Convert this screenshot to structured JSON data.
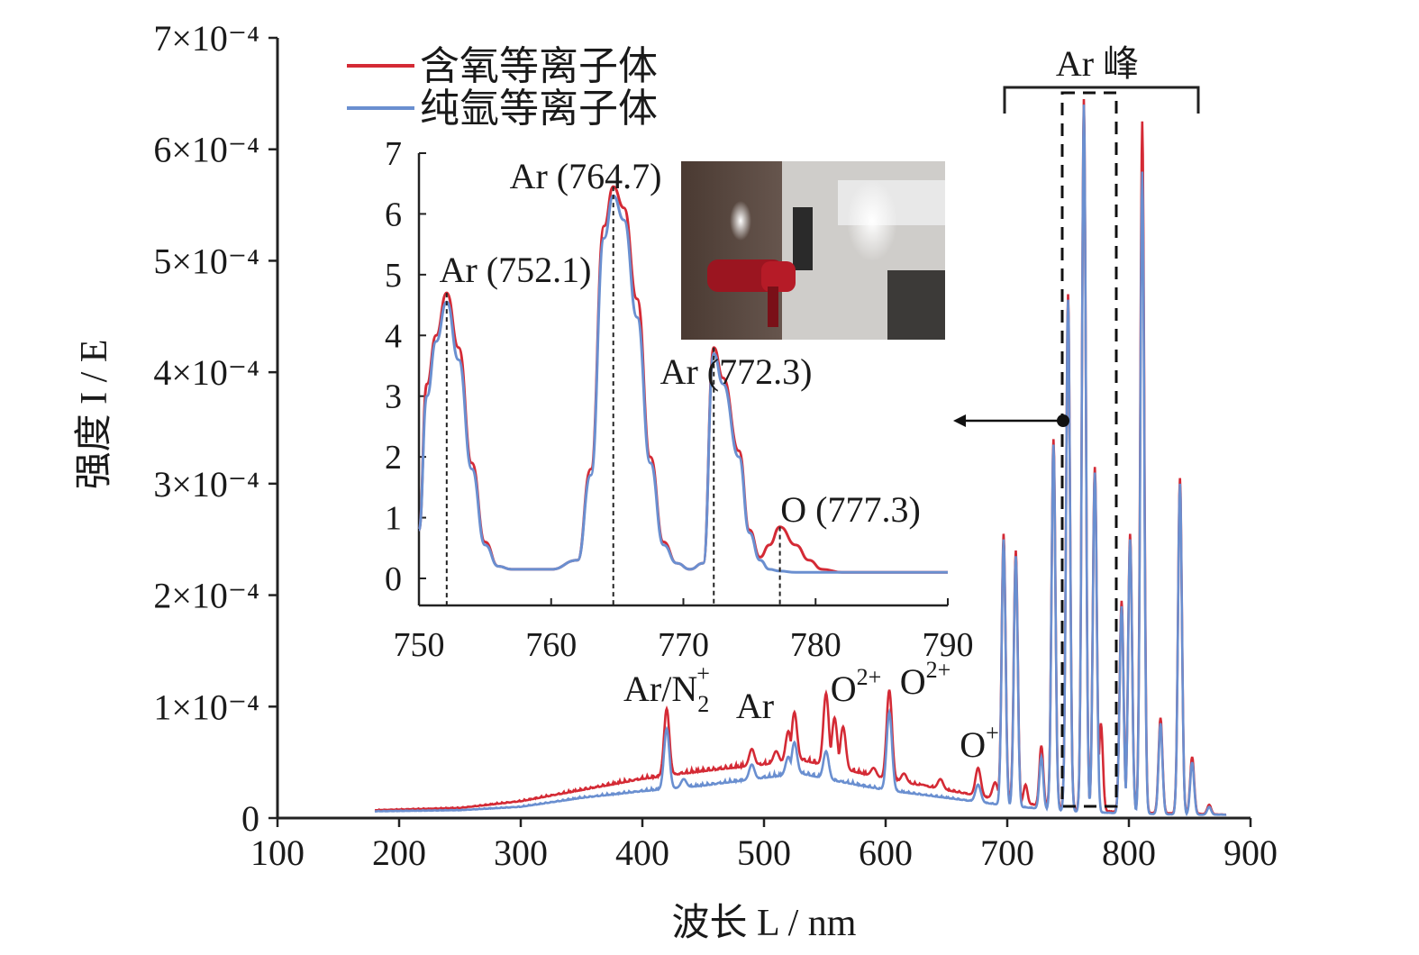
{
  "chart_data": [
    {
      "type": "line",
      "xlabel": "波长 L / nm",
      "ylabel": "强度 I / E",
      "xlim": [
        100,
        900
      ],
      "ylim": [
        0,
        0.0007
      ],
      "xticks": [
        "100",
        "200",
        "300",
        "400",
        "500",
        "600",
        "700",
        "800",
        "900"
      ],
      "yticks": [
        "0",
        "1×10⁻⁴",
        "2×10⁻⁴",
        "3×10⁻⁴",
        "4×10⁻⁴",
        "5×10⁻⁴",
        "6×10⁻⁴",
        "7×10⁻⁴"
      ],
      "legend": {
        "position": "top-left",
        "entries": [
          {
            "name": "含氧等离子体",
            "color": "#d42a35"
          },
          {
            "name": "纯氩等离子体",
            "color": "#6a8fd0"
          }
        ]
      },
      "series": [
        {
          "name": "含氧等离子体",
          "color": "#d42a35",
          "baseline": [
            [
              180,
              7e-06
            ],
            [
              250,
              9e-06
            ],
            [
              300,
              1.5e-05
            ],
            [
              350,
              2.5e-05
            ],
            [
              400,
              3.5e-05
            ],
            [
              450,
              4.2e-05
            ],
            [
              500,
              4.8e-05
            ],
            [
              530,
              5.2e-05
            ],
            [
              560,
              4.5e-05
            ],
            [
              600,
              3.5e-05
            ],
            [
              650,
              2.5e-05
            ],
            [
              700,
              1.5e-05
            ],
            [
              750,
              8e-06
            ],
            [
              800,
              5e-06
            ],
            [
              850,
              4e-06
            ],
            [
              880,
              3e-06
            ]
          ],
          "peaks": [
            [
              356,
              9e-06
            ],
            [
              395,
              1.2e-05
            ],
            [
              405,
              1e-05
            ],
            [
              420,
              9.8e-05
            ],
            [
              434,
              4e-05
            ],
            [
              490,
              6.2e-05
            ],
            [
              510,
              6e-05
            ],
            [
              520,
              7.8e-05
            ],
            [
              525,
              9.5e-05
            ],
            [
              551,
              0.000112
            ],
            [
              558,
              9e-05
            ],
            [
              565,
              8.2e-05
            ],
            [
              590,
              4.5e-05
            ],
            [
              603,
              0.000115
            ],
            [
              615,
              4e-05
            ],
            [
              630,
              3e-05
            ],
            [
              645,
              3.5e-05
            ],
            [
              676,
              4.5e-05
            ],
            [
              690,
              3.2e-05
            ],
            [
              697,
              0.000255
            ],
            [
              707,
              0.00024
            ],
            [
              715,
              3e-05
            ],
            [
              728,
              6.5e-05
            ],
            [
              738,
              0.00034
            ],
            [
              750,
              0.00047
            ],
            [
              763,
              0.000645
            ],
            [
              772,
              0.000315
            ],
            [
              777,
              8.5e-05
            ],
            [
              794,
              0.000195
            ],
            [
              801,
              0.000255
            ],
            [
              811,
              0.000625
            ],
            [
              826,
              9e-05
            ],
            [
              842,
              0.000305
            ],
            [
              852,
              5.5e-05
            ],
            [
              866,
              1.2e-05
            ]
          ]
        },
        {
          "name": "纯氩等离子体",
          "color": "#6a8fd0",
          "baseline": [
            [
              180,
              6e-06
            ],
            [
              250,
              7e-06
            ],
            [
              300,
              1e-05
            ],
            [
              350,
              1.8e-05
            ],
            [
              400,
              2.4e-05
            ],
            [
              450,
              2.9e-05
            ],
            [
              500,
              3.6e-05
            ],
            [
              530,
              4e-05
            ],
            [
              560,
              3.3e-05
            ],
            [
              600,
              2.5e-05
            ],
            [
              650,
              1.8e-05
            ],
            [
              700,
              1.1e-05
            ],
            [
              750,
              6e-06
            ],
            [
              800,
              4e-06
            ],
            [
              850,
              3e-06
            ],
            [
              880,
              3e-06
            ]
          ],
          "peaks": [
            [
              420,
              8e-05
            ],
            [
              434,
              3.5e-05
            ],
            [
              490,
              4.8e-05
            ],
            [
              520,
              5.5e-05
            ],
            [
              525,
              6.8e-05
            ],
            [
              551,
              6e-05
            ],
            [
              603,
              9.5e-05
            ],
            [
              676,
              3e-05
            ],
            [
              697,
              0.00025
            ],
            [
              707,
              0.000235
            ],
            [
              728,
              5.5e-05
            ],
            [
              738,
              0.000335
            ],
            [
              750,
              0.000465
            ],
            [
              763,
              0.00064
            ],
            [
              772,
              0.00031
            ],
            [
              794,
              0.00019
            ],
            [
              801,
              0.00025
            ],
            [
              811,
              0.00058
            ],
            [
              826,
              8.5e-05
            ],
            [
              842,
              0.0003
            ],
            [
              852,
              5e-05
            ],
            [
              866,
              1e-05
            ]
          ]
        }
      ],
      "annotations": [
        {
          "text": "Ar/N",
          "sub": "2",
          "sup": "+",
          "x": 420
        },
        {
          "text": "Ar",
          "x": 490
        },
        {
          "text": "O",
          "sup": "2+",
          "x": 551
        },
        {
          "text": "O",
          "sup": "2+",
          "x": 603
        },
        {
          "text": "O",
          "sup": "+",
          "x": 676
        },
        {
          "text": "Ar 峰",
          "range": [
            700,
            860
          ]
        }
      ]
    },
    {
      "type": "line",
      "xlim": [
        750,
        790
      ],
      "ylim": [
        0,
        7
      ],
      "xticks": [
        "750",
        "760",
        "770",
        "780",
        "790"
      ],
      "yticks": [
        "0",
        "1",
        "2",
        "3",
        "4",
        "5",
        "6",
        "7"
      ],
      "series": [
        {
          "name": "含氧等离子体",
          "color": "#d42a35",
          "x": [
            750,
            750.6,
            751.3,
            752.1,
            753.0,
            754.0,
            755.0,
            756.0,
            757.0,
            760.0,
            762.0,
            763.0,
            764.0,
            764.7,
            765.5,
            766.5,
            767.5,
            768.5,
            769.5,
            770.5,
            771.5,
            772.3,
            773.0,
            774.2,
            775.0,
            775.8,
            776.5,
            777.3,
            778.5,
            779.5,
            780.5,
            782.0,
            785.0,
            790.0
          ],
          "y": [
            0.8,
            3.2,
            4.0,
            4.7,
            3.8,
            1.9,
            0.6,
            0.2,
            0.15,
            0.15,
            0.3,
            1.8,
            5.8,
            6.45,
            6.1,
            4.6,
            2.0,
            0.6,
            0.25,
            0.15,
            0.25,
            3.8,
            3.3,
            2.1,
            0.8,
            0.35,
            0.55,
            0.85,
            0.55,
            0.3,
            0.15,
            0.1,
            0.1,
            0.1
          ]
        },
        {
          "name": "纯氩等离子体",
          "color": "#6a8fd0",
          "x": [
            750,
            750.6,
            751.3,
            752.1,
            753.0,
            754.0,
            755.0,
            756.0,
            757.0,
            760.0,
            762.0,
            763.0,
            764.0,
            764.7,
            765.5,
            766.5,
            767.5,
            768.5,
            769.5,
            770.5,
            771.5,
            772.3,
            773.0,
            774.2,
            775.0,
            775.8,
            776.5,
            777.3,
            778.5,
            779.5,
            780.5,
            782.0,
            785.0,
            790.0
          ],
          "y": [
            0.8,
            3.0,
            3.9,
            4.55,
            3.6,
            1.8,
            0.55,
            0.2,
            0.15,
            0.15,
            0.3,
            1.7,
            5.6,
            6.3,
            5.9,
            4.3,
            1.9,
            0.55,
            0.25,
            0.15,
            0.25,
            3.7,
            3.2,
            2.0,
            0.75,
            0.3,
            0.15,
            0.12,
            0.1,
            0.1,
            0.1,
            0.1,
            0.1,
            0.1
          ]
        }
      ],
      "annotations": [
        {
          "text": "Ar (752.1)",
          "x": 752.1,
          "y": 4.7
        },
        {
          "text": "Ar (764.7)",
          "x": 764.7,
          "y": 6.45
        },
        {
          "text": "Ar (772.3)",
          "x": 772.3,
          "y": 3.8
        },
        {
          "text": "O (777.3)",
          "x": 777.3,
          "y": 0.85
        }
      ]
    }
  ],
  "photo": {
    "description_icon": "plasma-jet-photo"
  }
}
